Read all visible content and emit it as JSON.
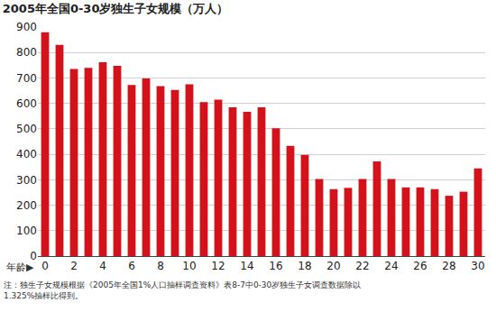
{
  "chart_data": {
    "type": "bar",
    "title": "2005年全国0-30岁独生子女规模（万人）",
    "xlabel": "年龄▶",
    "x": [
      0,
      1,
      2,
      3,
      4,
      5,
      6,
      7,
      8,
      9,
      10,
      11,
      12,
      13,
      14,
      15,
      16,
      17,
      18,
      19,
      20,
      21,
      22,
      23,
      24,
      25,
      26,
      27,
      28,
      29,
      30
    ],
    "values": [
      880,
      830,
      735,
      740,
      762,
      748,
      672,
      698,
      668,
      653,
      675,
      605,
      615,
      585,
      567,
      585,
      502,
      433,
      398,
      303,
      263,
      268,
      303,
      372,
      303,
      270,
      270,
      263,
      237,
      253,
      345
    ],
    "color": "#d3121c",
    "xlim": [
      -0.5,
      30.5
    ],
    "xticks": [
      0,
      2,
      4,
      6,
      8,
      10,
      12,
      14,
      16,
      18,
      20,
      22,
      24,
      26,
      28,
      30
    ],
    "ylim": [
      0,
      900
    ],
    "yticks": [
      0,
      100,
      200,
      300,
      400,
      500,
      600,
      700,
      800,
      900
    ],
    "grid": true,
    "note": [
      "注：独生子女规模根据《2005年全国1%人口抽样调查资料》表8-7中0-30岁独生子女调查数据除以",
      "1.325%抽样比得到。"
    ]
  }
}
